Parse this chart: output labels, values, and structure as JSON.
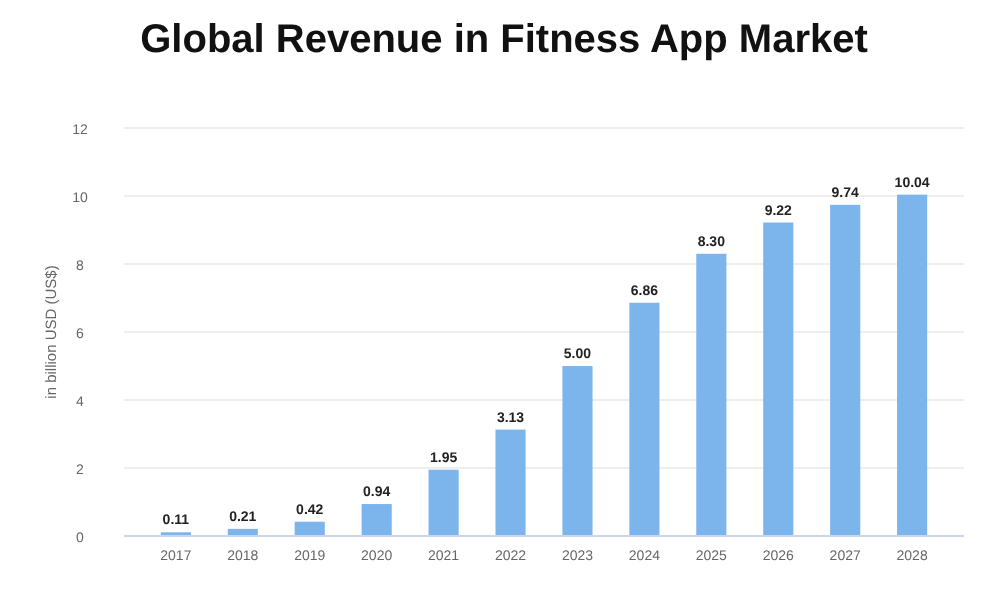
{
  "chart_data": {
    "type": "bar",
    "title": "Global Revenue in Fitness App Market",
    "ylabel": "in billion USD (US$)",
    "categories": [
      "2017",
      "2018",
      "2019",
      "2020",
      "2021",
      "2022",
      "2023",
      "2024",
      "2025",
      "2026",
      "2027",
      "2028"
    ],
    "values": [
      0.11,
      0.21,
      0.42,
      0.94,
      1.95,
      3.13,
      5.0,
      6.86,
      8.3,
      9.22,
      9.74,
      10.04
    ],
    "value_labels": [
      "0.11",
      "0.21",
      "0.42",
      "0.94",
      "1.95",
      "3.13",
      "5.00",
      "6.86",
      "8.30",
      "9.22",
      "9.74",
      "10.04"
    ],
    "color": "#7cb5ec",
    "ylim": [
      0,
      12
    ],
    "yticks": [
      0,
      2,
      4,
      6,
      8,
      10,
      12
    ],
    "grid": "y"
  }
}
